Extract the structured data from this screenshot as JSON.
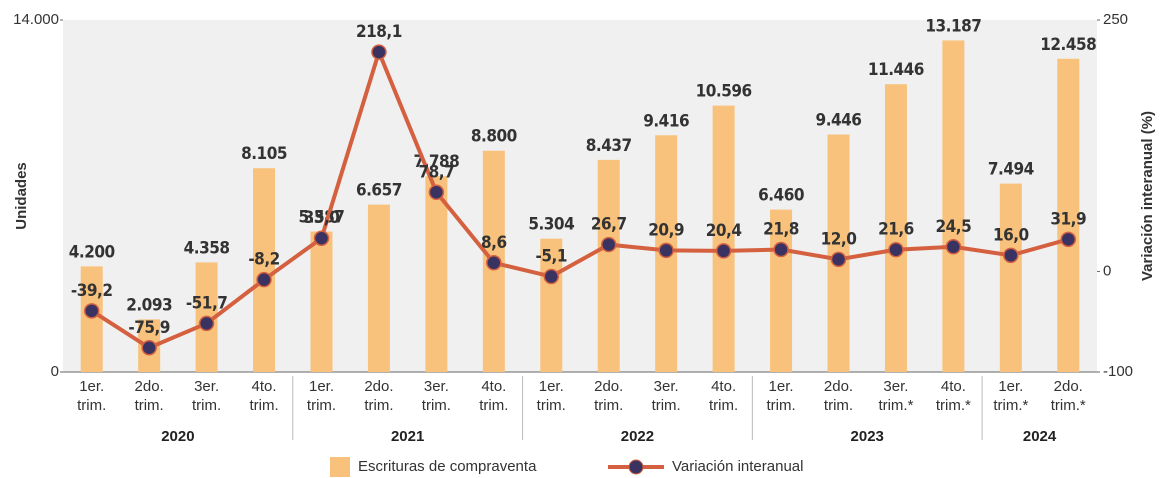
{
  "chart_data": {
    "type": "bar-line",
    "groups": [
      {
        "name": "2020",
        "categories": [
          "1er. trim.",
          "2do. trim.",
          "3er. trim.",
          "4to. trim."
        ]
      },
      {
        "name": "2021",
        "categories": [
          "1er. trim.",
          "2do. trim.",
          "3er. trim.",
          "4to. trim."
        ]
      },
      {
        "name": "2022",
        "categories": [
          "1er. trim.",
          "2do. trim.",
          "3er. trim.",
          "4to. trim."
        ]
      },
      {
        "name": "2023",
        "categories": [
          "1er. trim.",
          "2do. trim.",
          "3er. trim.*",
          "4to. trim.*"
        ]
      },
      {
        "name": "2024",
        "categories": [
          "1er. trim.*",
          "2do. trim.*"
        ]
      }
    ],
    "series": [
      {
        "name": "Escrituras de compraventa",
        "color": "#f8c27c",
        "kind": "bar",
        "values": [
          4200,
          2093,
          4358,
          8105,
          5587,
          6657,
          7788,
          8800,
          5304,
          8437,
          9416,
          10596,
          6460,
          9446,
          11446,
          13187,
          7494,
          12458
        ],
        "value_labels": [
          "4.200",
          "2.093",
          "4.358",
          "8.105",
          "5.587",
          "6.657",
          "7.788",
          "8.800",
          "5.304",
          "8.437",
          "9.416",
          "10.596",
          "6.460",
          "9.446",
          "11.446",
          "13.187",
          "7.494",
          "12.458"
        ]
      },
      {
        "name": "Variación interanual",
        "color": "#d4603f",
        "kind": "line",
        "axis": "y2",
        "values": [
          -39.2,
          -75.9,
          -51.7,
          -8.2,
          33.0,
          218.1,
          78.7,
          8.6,
          -5.1,
          26.7,
          20.9,
          20.4,
          21.8,
          12.0,
          21.6,
          24.5,
          16.0,
          31.9
        ],
        "value_labels": [
          "-39,2",
          "-75,9",
          "-51,7",
          "-8,2",
          "33,0",
          "218,1",
          "78,7",
          "8,6",
          "-5,1",
          "26,7",
          "20,9",
          "20,4",
          "21,8",
          "12,0",
          "21,6",
          "24,5",
          "16,0",
          "31,9"
        ]
      }
    ],
    "ylabel": "Unidades",
    "y2label": "Variación interanual (%)",
    "ylim": [
      0,
      14000
    ],
    "yticks": [
      0,
      {
        "value": 14000,
        "label": "14.000"
      }
    ],
    "y2lim": [
      -100,
      250
    ],
    "y2ticks": [
      -100,
      0,
      250
    ]
  }
}
